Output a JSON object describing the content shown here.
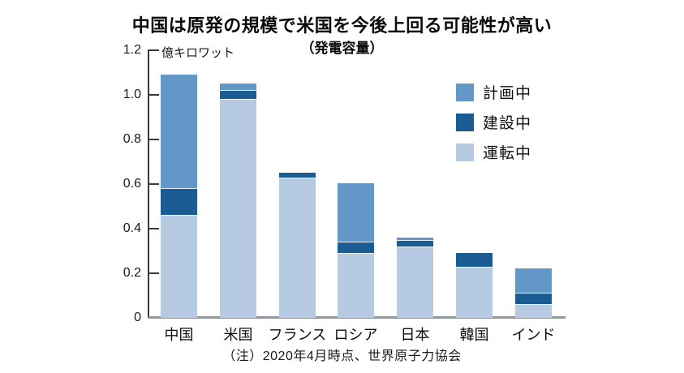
{
  "page": {
    "title": "中国は原発の規模で米国を今後上回る可能性が高い",
    "subtitle": "（発電容量）",
    "unit_label": "億キロワット",
    "note": "（注）2020年4月時点、世界原子力協会"
  },
  "colors": {
    "planned": "#6397c8",
    "construction": "#1c5c95",
    "operating": "#b6cbe2",
    "axis": "#3a3a3a",
    "baseline": "#90969c"
  },
  "legend": {
    "position": "upper-right",
    "items": [
      {
        "label": "計画中",
        "color": "#6397c8"
      },
      {
        "label": "建設中",
        "color": "#1c5c95"
      },
      {
        "label": "運転中",
        "color": "#b6cbe2"
      }
    ]
  },
  "chart_data": {
    "type": "bar",
    "stacked": true,
    "title": "中国は原発の規模で米国を今後上回る可能性が高い",
    "subtitle": "（発電容量）",
    "ylabel": "億キロワット",
    "ylim": [
      0,
      1.2
    ],
    "yticks": [
      {
        "label": "0",
        "value": 0
      },
      {
        "label": "0.2",
        "value": 0.2
      },
      {
        "label": "0.4",
        "value": 0.4
      },
      {
        "label": "0.6",
        "value": 0.6
      },
      {
        "label": "0.8",
        "value": 0.8
      },
      {
        "label": "1.0",
        "value": 1.0
      },
      {
        "label": "1.2",
        "value": 1.2
      }
    ],
    "categories": [
      "中国",
      "米国",
      "フランス",
      "ロシア",
      "日本",
      "韓国",
      "インド"
    ],
    "series": [
      {
        "name": "運転中",
        "color": "#b6cbe2",
        "values": [
          0.46,
          0.98,
          0.63,
          0.29,
          0.32,
          0.23,
          0.06
        ]
      },
      {
        "name": "建設中",
        "color": "#1c5c95",
        "values": [
          0.12,
          0.04,
          0.02,
          0.05,
          0.03,
          0.06,
          0.05
        ]
      },
      {
        "name": "計画中",
        "color": "#6397c8",
        "values": [
          0.51,
          0.03,
          0,
          0.26,
          0.01,
          0,
          0.11
        ]
      }
    ],
    "totals": [
      1.09,
      1.05,
      0.65,
      0.6,
      0.36,
      0.29,
      0.22
    ],
    "grid": false,
    "legend_position": "upper right",
    "note": "（注）2020年4月時点、世界原子力協会"
  }
}
